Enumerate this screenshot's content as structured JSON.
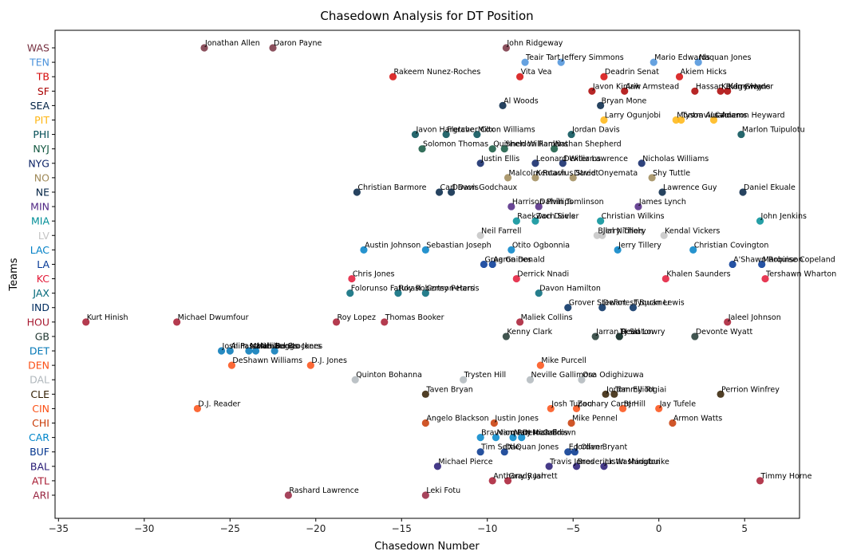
{
  "chart_data": {
    "type": "scatter",
    "title": "Chasedown Analysis for DT Position",
    "xlabel": "Chasedown Number",
    "ylabel": "Teams",
    "xlim": [
      -35.2,
      8.2
    ],
    "xticks": [
      -35,
      -30,
      -25,
      -20,
      -15,
      -10,
      -5,
      0,
      5
    ],
    "grid": false,
    "categories": [
      "ARI",
      "ATL",
      "BAL",
      "BUF",
      "CAR",
      "CHI",
      "CIN",
      "CLE",
      "DAL",
      "DEN",
      "DET",
      "GB",
      "HOU",
      "IND",
      "JAX",
      "KC",
      "LA",
      "LAC",
      "LV",
      "MIA",
      "MIN",
      "NE",
      "NO",
      "NYG",
      "NYJ",
      "PHI",
      "PIT",
      "SEA",
      "SF",
      "TB",
      "TEN",
      "WAS"
    ],
    "team_colors": {
      "ARI": "#97233f",
      "ATL": "#a71930",
      "BAL": "#241773",
      "BUF": "#00338d",
      "CAR": "#0085ca",
      "CHI": "#c83803",
      "CIN": "#fb4f14",
      "CLE": "#311d00",
      "DAL": "#b0b7bc",
      "DEN": "#fb4f14",
      "DET": "#0076b6",
      "GB": "#203731",
      "HOU": "#a71930",
      "IND": "#002c5f",
      "JAX": "#006778",
      "KC": "#e31837",
      "LA": "#003594",
      "LAC": "#0080c6",
      "LV": "#c4c4c4",
      "MIA": "#008e97",
      "MIN": "#4f2683",
      "NE": "#002244",
      "NO": "#9f8958",
      "NYG": "#0b2265",
      "NYJ": "#125740",
      "PHI": "#004c54",
      "PIT": "#ffb612",
      "SEA": "#002244",
      "SF": "#aa0000",
      "TB": "#d50a0a",
      "TEN": "#4b92db",
      "WAS": "#773141"
    },
    "points": [
      {
        "team": "WAS",
        "name": "Jonathan Allen",
        "x": -26.5
      },
      {
        "team": "WAS",
        "name": "Daron Payne",
        "x": -22.5
      },
      {
        "team": "WAS",
        "name": "John Ridgeway",
        "x": -8.9
      },
      {
        "team": "TEN",
        "name": "Teair Tart",
        "x": -7.8
      },
      {
        "team": "TEN",
        "name": "Jeffery Simmons",
        "x": -5.7
      },
      {
        "team": "TEN",
        "name": "Mario Edwards",
        "x": -0.3
      },
      {
        "team": "TEN",
        "name": "Naquan Jones",
        "x": 2.3
      },
      {
        "team": "TB",
        "name": "Rakeem Nunez-Roches",
        "x": -15.5
      },
      {
        "team": "TB",
        "name": "Vita Vea",
        "x": -8.1
      },
      {
        "team": "TB",
        "name": "Deadrin Senat",
        "x": -3.2
      },
      {
        "team": "TB",
        "name": "Akiem Hicks",
        "x": 1.2
      },
      {
        "team": "SF",
        "name": "Javon Kinlaw",
        "x": -3.9
      },
      {
        "team": "SF",
        "name": "Arik Armstead",
        "x": -2.0
      },
      {
        "team": "SF",
        "name": "Hassan Ridgeway",
        "x": 2.1
      },
      {
        "team": "SF",
        "name": "Kevin Givens",
        "x": 3.6
      },
      {
        "team": "SF",
        "name": "Kerry Hyder",
        "x": 4.0
      },
      {
        "team": "SEA",
        "name": "Al Woods",
        "x": -9.1
      },
      {
        "team": "SEA",
        "name": "Bryan Mone",
        "x": -3.4
      },
      {
        "team": "PIT",
        "name": "Larry Ogunjobi",
        "x": -3.2
      },
      {
        "team": "PIT",
        "name": "Montravius Adams",
        "x": 1.0
      },
      {
        "team": "PIT",
        "name": "Tyson Alualu",
        "x": 1.3
      },
      {
        "team": "PIT",
        "name": "Cameron Heyward",
        "x": 3.2
      },
      {
        "team": "PHI",
        "name": "Javon Hargrave",
        "x": -14.2
      },
      {
        "team": "PHI",
        "name": "Fletcher Cox",
        "x": -12.4
      },
      {
        "team": "PHI",
        "name": "Milton Williams",
        "x": -10.6
      },
      {
        "team": "PHI",
        "name": "Jordan Davis",
        "x": -5.1
      },
      {
        "team": "PHI",
        "name": "Marlon Tuipulotu",
        "x": 4.8
      },
      {
        "team": "NYJ",
        "name": "Solomon Thomas",
        "x": -13.8
      },
      {
        "team": "NYJ",
        "name": "Quinnen Williams",
        "x": -9.7
      },
      {
        "team": "NYJ",
        "name": "Sheldon Rankins",
        "x": -9.0
      },
      {
        "team": "NYJ",
        "name": "Nathan Shepherd",
        "x": -6.1
      },
      {
        "team": "NYG",
        "name": "Justin Ellis",
        "x": -10.4
      },
      {
        "team": "NYG",
        "name": "Leonard Williams",
        "x": -7.2
      },
      {
        "team": "NYG",
        "name": "Dexter Lawrence",
        "x": -5.6
      },
      {
        "team": "NYG",
        "name": "Nicholas Williams",
        "x": -1.0
      },
      {
        "team": "NO",
        "name": "Malcolm Roach",
        "x": -8.8
      },
      {
        "team": "NO",
        "name": "Kentavius Street",
        "x": -7.2
      },
      {
        "team": "NO",
        "name": "David Onyemata",
        "x": -5.0
      },
      {
        "team": "NO",
        "name": "Shy Tuttle",
        "x": -0.4
      },
      {
        "team": "NE",
        "name": "Christian Barmore",
        "x": -17.6
      },
      {
        "team": "NE",
        "name": "Carl Davis",
        "x": -12.8
      },
      {
        "team": "NE",
        "name": "Davon Godchaux",
        "x": -12.1
      },
      {
        "team": "NE",
        "name": "Lawrence Guy",
        "x": 0.2
      },
      {
        "team": "NE",
        "name": "Daniel Ekuale",
        "x": 4.9
      },
      {
        "team": "MIN",
        "name": "Harrison Phillips",
        "x": -8.6
      },
      {
        "team": "MIN",
        "name": "Dalvin Tomlinson",
        "x": -7.0
      },
      {
        "team": "MIN",
        "name": "James Lynch",
        "x": -1.2
      },
      {
        "team": "MIA",
        "name": "Raekwon Davis",
        "x": -8.3
      },
      {
        "team": "MIA",
        "name": "Zach Sieler",
        "x": -7.2
      },
      {
        "team": "MIA",
        "name": "Christian Wilkins",
        "x": -3.4
      },
      {
        "team": "MIA",
        "name": "John Jenkins",
        "x": 5.9
      },
      {
        "team": "LV",
        "name": "Neil Farrell",
        "x": -10.4
      },
      {
        "team": "LV",
        "name": "Bilal Nichols",
        "x": -3.6
      },
      {
        "team": "LV",
        "name": "Jerry Tillery",
        "x": -3.3
      },
      {
        "team": "LV",
        "name": "Kendal Vickers",
        "x": 0.3
      },
      {
        "team": "LAC",
        "name": "Austin Johnson",
        "x": -17.2
      },
      {
        "team": "LAC",
        "name": "Sebastian Joseph",
        "x": -13.6
      },
      {
        "team": "LAC",
        "name": "Otito Ogbonnia",
        "x": -8.6
      },
      {
        "team": "LAC",
        "name": "Jerry Tillery",
        "x": -2.4
      },
      {
        "team": "LAC",
        "name": "Christian Covington",
        "x": 2.0
      },
      {
        "team": "LA",
        "name": "Greg Gaines",
        "x": -10.2
      },
      {
        "team": "LA",
        "name": "Aaron Donald",
        "x": -9.7
      },
      {
        "team": "LA",
        "name": "A'Shawn Robinson",
        "x": 4.3
      },
      {
        "team": "LA",
        "name": "Marquise Copeland",
        "x": 6.0
      },
      {
        "team": "KC",
        "name": "Chris Jones",
        "x": -17.9
      },
      {
        "team": "KC",
        "name": "Derrick Nnadi",
        "x": -8.3
      },
      {
        "team": "KC",
        "name": "Khalen Saunders",
        "x": 0.4
      },
      {
        "team": "KC",
        "name": "Tershawn Wharton",
        "x": 6.2
      },
      {
        "team": "JAX",
        "name": "Folorunso Fatukasi",
        "x": -18.0
      },
      {
        "team": "JAX",
        "name": "Roy Robertson-Harris",
        "x": -15.2
      },
      {
        "team": "JAX",
        "name": "Corey Peters",
        "x": -13.6
      },
      {
        "team": "JAX",
        "name": "Davon Hamilton",
        "x": -7.0
      },
      {
        "team": "IND",
        "name": "Grover Stewart",
        "x": -5.3
      },
      {
        "team": "IND",
        "name": "DeForest Buckner",
        "x": -3.3
      },
      {
        "team": "IND",
        "name": "Tyquan Lewis",
        "x": -1.5
      },
      {
        "team": "HOU",
        "name": "Kurt Hinish",
        "x": -33.4
      },
      {
        "team": "HOU",
        "name": "Michael Dwumfour",
        "x": -28.1
      },
      {
        "team": "HOU",
        "name": "Roy Lopez",
        "x": -18.8
      },
      {
        "team": "HOU",
        "name": "Thomas Booker",
        "x": -16.0
      },
      {
        "team": "HOU",
        "name": "Maliek Collins",
        "x": -8.1
      },
      {
        "team": "HOU",
        "name": "Jaleel Johnson",
        "x": 4.0
      },
      {
        "team": "GB",
        "name": "Kenny Clark",
        "x": -8.9
      },
      {
        "team": "GB",
        "name": "Jarran Reed",
        "x": -3.7
      },
      {
        "team": "GB",
        "name": "TJ Slaton",
        "x": -2.3
      },
      {
        "team": "GB",
        "name": "Dean Lowry",
        "x": -2.3
      },
      {
        "team": "GB",
        "name": "Devonte Wyatt",
        "x": 2.1
      },
      {
        "team": "DET",
        "name": "Josh Paschal",
        "x": -25.5
      },
      {
        "team": "DET",
        "name": "Alim McNeill",
        "x": -25.0
      },
      {
        "team": "DET",
        "name": "Isaiah Buggs",
        "x": -23.9
      },
      {
        "team": "DET",
        "name": "Michael Brockers",
        "x": -23.5
      },
      {
        "team": "DET",
        "name": "Benito Jones",
        "x": -22.4
      },
      {
        "team": "DEN",
        "name": "DeShawn Williams",
        "x": -24.9
      },
      {
        "team": "DEN",
        "name": "D.J. Jones",
        "x": -20.3
      },
      {
        "team": "DEN",
        "name": "Mike Purcell",
        "x": -6.9
      },
      {
        "team": "DAL",
        "name": "Quinton Bohanna",
        "x": -17.7
      },
      {
        "team": "DAL",
        "name": "Trysten Hill",
        "x": -11.4
      },
      {
        "team": "DAL",
        "name": "Neville Gallimore",
        "x": -7.5
      },
      {
        "team": "DAL",
        "name": "Osa Odighizuwa",
        "x": -4.5
      },
      {
        "team": "CLE",
        "name": "Taven Bryan",
        "x": -13.6
      },
      {
        "team": "CLE",
        "name": "Jordan Elliott",
        "x": -3.1
      },
      {
        "team": "CLE",
        "name": "Tommy Togiai",
        "x": -2.6
      },
      {
        "team": "CLE",
        "name": "Perrion Winfrey",
        "x": 3.6
      },
      {
        "team": "CIN",
        "name": "D.J. Reader",
        "x": -26.9
      },
      {
        "team": "CIN",
        "name": "Josh Tupou",
        "x": -6.3
      },
      {
        "team": "CIN",
        "name": "Zachary Carter",
        "x": -4.8
      },
      {
        "team": "CIN",
        "name": "BJ Hill",
        "x": -2.1
      },
      {
        "team": "CIN",
        "name": "Jay Tufele",
        "x": 0.0
      },
      {
        "team": "CHI",
        "name": "Angelo Blackson",
        "x": -13.6
      },
      {
        "team": "CHI",
        "name": "Justin Jones",
        "x": -9.6
      },
      {
        "team": "CHI",
        "name": "Mike Pennel",
        "x": -5.1
      },
      {
        "team": "CHI",
        "name": "Armon Watts",
        "x": 0.8
      },
      {
        "team": "CAR",
        "name": "Bravvion Roy",
        "x": -10.4
      },
      {
        "team": "CAR",
        "name": "Marquan McCall",
        "x": -9.5
      },
      {
        "team": "CAR",
        "name": "Matt Ioannidis",
        "x": -8.5
      },
      {
        "team": "CAR",
        "name": "Derrick Brown",
        "x": -8.0
      },
      {
        "team": "BUF",
        "name": "Tim Settle",
        "x": -10.4
      },
      {
        "team": "BUF",
        "name": "DaQuan Jones",
        "x": -9.0
      },
      {
        "team": "BUF",
        "name": "Ed Oliver",
        "x": -5.3
      },
      {
        "team": "BUF",
        "name": "Jordan Bryant",
        "x": -4.9
      },
      {
        "team": "BAL",
        "name": "Michael Pierce",
        "x": -12.9
      },
      {
        "team": "BAL",
        "name": "Travis Jones",
        "x": -6.4
      },
      {
        "team": "BAL",
        "name": "Broderick Washington",
        "x": -4.8
      },
      {
        "team": "BAL",
        "name": "Justin Madubuike",
        "x": -3.2
      },
      {
        "team": "ATL",
        "name": "Anthony Rush",
        "x": -9.7
      },
      {
        "team": "ATL",
        "name": "Grady Jarrett",
        "x": -8.8
      },
      {
        "team": "ATL",
        "name": "Timmy Horne",
        "x": 5.9
      },
      {
        "team": "ARI",
        "name": "Rashard Lawrence",
        "x": -21.6
      },
      {
        "team": "ARI",
        "name": "Leki Fotu",
        "x": -13.6
      }
    ]
  }
}
